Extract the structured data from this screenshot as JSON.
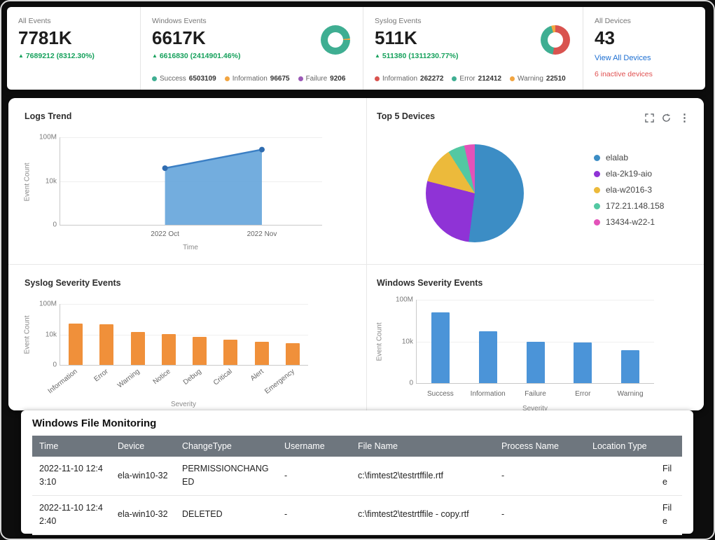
{
  "theme": {
    "background": "#0d0d0d",
    "card": "#ffffff",
    "table_header_bg": "#6e767e",
    "link_color": "#1d6fd2",
    "alert_color": "#e04f4f",
    "positive_color": "#16a15c"
  },
  "stats": {
    "all_events": {
      "label": "All Events",
      "value": "7781K",
      "delta_arrow": "▲",
      "delta": "7689212 (8312.30%)"
    },
    "windows_events": {
      "label": "Windows Events",
      "value": "6617K",
      "delta_arrow": "▲",
      "delta": "6616830 (2414901.46%)",
      "legend": [
        {
          "label": "Success",
          "value": "6503109",
          "color": "#3fae92"
        },
        {
          "label": "Information",
          "value": "96675",
          "color": "#f2a541"
        },
        {
          "label": "Failure",
          "value": "9206",
          "color": "#9b59b6"
        }
      ]
    },
    "syslog_events": {
      "label": "Syslog Events",
      "value": "511K",
      "delta_arrow": "▲",
      "delta": "511380 (1311230.77%)",
      "legend": [
        {
          "label": "Information",
          "value": "262272",
          "color": "#d9534f"
        },
        {
          "label": "Error",
          "value": "212412",
          "color": "#3fae92"
        },
        {
          "label": "Warning",
          "value": "22510",
          "color": "#f2a541"
        }
      ]
    },
    "all_devices": {
      "label": "All Devices",
      "value": "43",
      "link": "View All Devices",
      "inactive": "6 inactive devices"
    }
  },
  "icons": {
    "more_glyph": "⋮"
  },
  "chart_data": [
    {
      "id": "logs_trend",
      "type": "area",
      "title": "Logs Trend",
      "x": [
        "2022 Oct",
        "2022 Nov"
      ],
      "values": [
        150000,
        7500000
      ],
      "xlabel": "Time",
      "ylabel": "Event Count",
      "yticks": [
        "0",
        "10k",
        "100M"
      ],
      "yscale": "log",
      "ylim": [
        0,
        100000000
      ],
      "color": "#5b9fd8",
      "line_color": "#3b7fc4",
      "dot_color": "#2f6cb0"
    },
    {
      "id": "top5_devices",
      "type": "pie",
      "title": "Top 5 Devices",
      "labels": [
        "elalab",
        "ela-2k19-aio",
        "ela-w2016-3",
        "172.21.148.158",
        "13434-w22-1"
      ],
      "values_pct": [
        52,
        27,
        12,
        5.5,
        3.5
      ],
      "colors": [
        "#3c8dc5",
        "#8f33d6",
        "#ecba3b",
        "#53c8a2",
        "#e352b9"
      ],
      "legend_position": "right"
    },
    {
      "id": "syslog_severity",
      "type": "bar",
      "title": "Syslog Severity Events",
      "categories": [
        "Information",
        "Error",
        "Warning",
        "Notice",
        "Debug",
        "Critical",
        "Alert",
        "Emergency"
      ],
      "values": [
        262272,
        212412,
        22510,
        12000,
        4500,
        2200,
        1200,
        700
      ],
      "xlabel": "Severity",
      "ylabel": "Event Count",
      "yticks": [
        "0",
        "10k",
        "100M"
      ],
      "yscale": "log",
      "color": "#f0903a",
      "rotate_labels": true
    },
    {
      "id": "windows_severity",
      "type": "bar",
      "title": "Windows Severity Events",
      "categories": [
        "Success",
        "Information",
        "Failure",
        "Error",
        "Warning"
      ],
      "values": [
        6503109,
        96675,
        9206,
        8500,
        1500
      ],
      "xlabel": "Severity",
      "ylabel": "Event Count",
      "yticks": [
        "0",
        "10k",
        "100M"
      ],
      "yscale": "log",
      "color": "#4b94d8",
      "rotate_labels": false
    },
    {
      "id": "windows_events_donut",
      "type": "donut",
      "start_deg": 90,
      "series": [
        {
          "name": "Success",
          "value": 6503109,
          "color": "#3fae92"
        },
        {
          "name": "Information",
          "value": 96675,
          "color": "#f2a541"
        },
        {
          "name": "Failure",
          "value": 9206,
          "color": "#9b59b6"
        }
      ]
    },
    {
      "id": "syslog_events_donut",
      "type": "donut",
      "start_deg": 0,
      "series": [
        {
          "name": "Information",
          "value": 262272,
          "color": "#d9534f"
        },
        {
          "name": "Error",
          "value": 212412,
          "color": "#3fae92"
        },
        {
          "name": "Warning",
          "value": 22510,
          "color": "#f2a541"
        }
      ]
    }
  ],
  "file_monitoring": {
    "title": "Windows File Monitoring",
    "columns": [
      "Time",
      "Device",
      "ChangeType",
      "Username",
      "File Name",
      "Process Name",
      "Location Type"
    ],
    "rows": [
      [
        "2022-11-10 12:43:10",
        "ela-win10-32",
        "PERMISSIONCHANGED",
        "-",
        "c:\\fimtest2\\testrtffile.rtf",
        "-",
        "File"
      ],
      [
        "2022-11-10 12:42:40",
        "ela-win10-32",
        "DELETED",
        "-",
        "c:\\fimtest2\\testrtffile - copy.rtf",
        "-",
        "File"
      ]
    ]
  }
}
